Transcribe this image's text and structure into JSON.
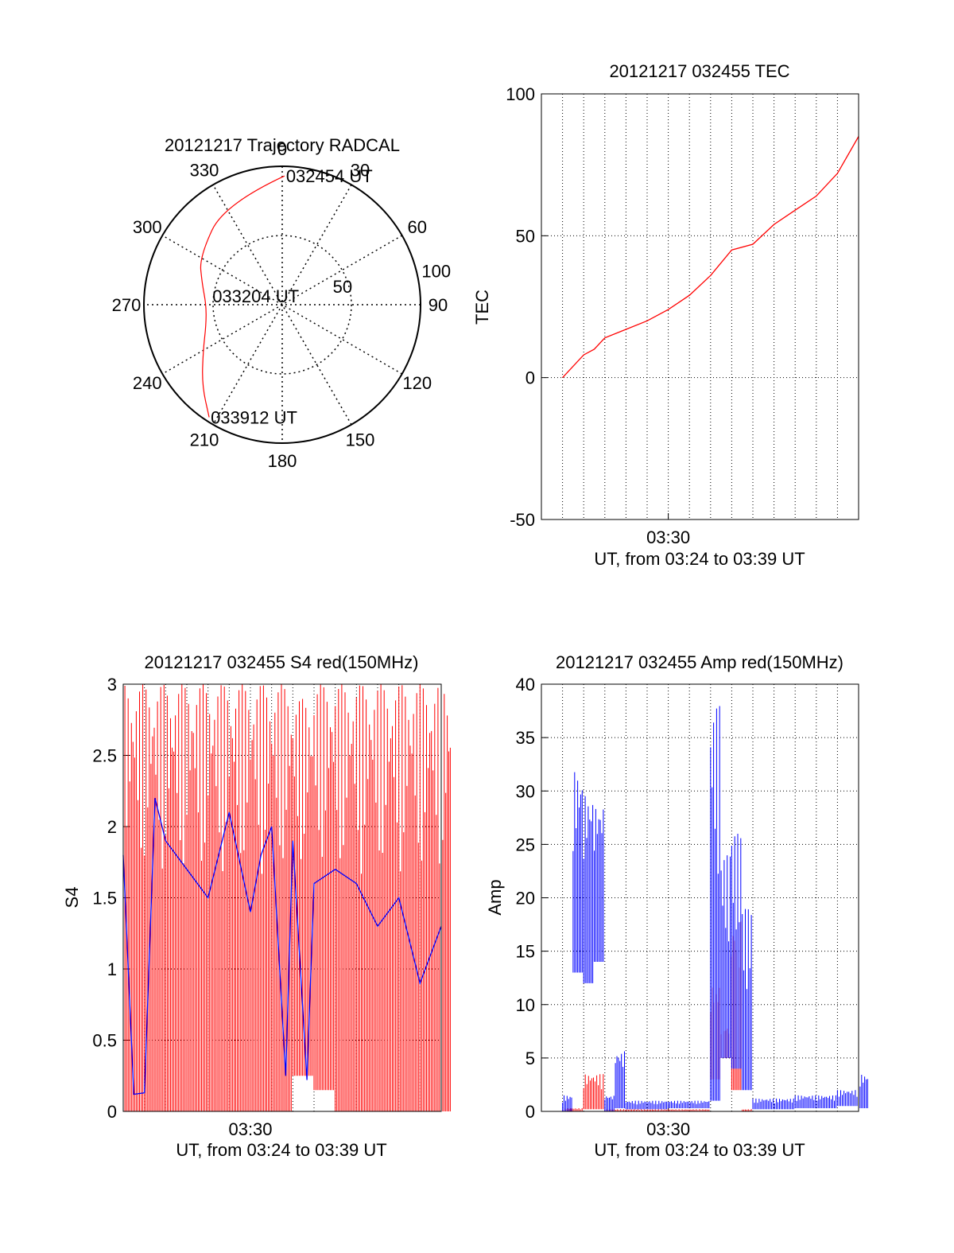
{
  "colors": {
    "red": "#ff0000",
    "blue": "#0000ff",
    "axis": "#000000",
    "grid": "#000000",
    "background": "#ffffff"
  },
  "chart_data": [
    {
      "id": "trajectory",
      "type": "polar",
      "title": "20121217 Trajectory RADCAL",
      "angle_ticks": [
        "0",
        "30",
        "60",
        "90",
        "120",
        "150",
        "180",
        "210",
        "240",
        "270",
        "300",
        "330"
      ],
      "radial_ticks": [
        "50",
        "100"
      ],
      "rlim": [
        0,
        100
      ],
      "grid": true,
      "annotations": [
        {
          "text": "032454 UT",
          "az": 1,
          "r": 93
        },
        {
          "text": "033204 UT",
          "az": 277,
          "r": 52
        },
        {
          "text": "033912 UT",
          "az": 213,
          "r": 97
        }
      ],
      "series": [
        {
          "color": "red",
          "points_az_r": [
            [
              1,
              93
            ],
            [
              330,
              84
            ],
            [
              300,
              69
            ],
            [
              285,
              60
            ],
            [
              270,
              55
            ],
            [
              255,
              57
            ],
            [
              240,
              66
            ],
            [
              225,
              82
            ],
            [
              213,
              97
            ]
          ]
        }
      ]
    },
    {
      "id": "tec",
      "type": "line",
      "title": "20121217 032455 TEC",
      "xlabel": "UT, from 03:24 to 03:39 UT",
      "ylabel": "TEC",
      "xlim": [
        "03:24",
        "03:39"
      ],
      "ylim": [
        -50,
        100
      ],
      "x_ticks": [
        "03:30"
      ],
      "y_ticks": [
        "-50",
        "0",
        "50",
        "100"
      ],
      "grid": true,
      "series": [
        {
          "color": "red",
          "x": [
            "03:25:00",
            "03:26:00",
            "03:26:30",
            "03:27:00",
            "03:28:00",
            "03:29:00",
            "03:30:00",
            "03:31:00",
            "03:32:00",
            "03:33:00",
            "03:34:00",
            "03:35:00",
            "03:36:00",
            "03:37:00",
            "03:38:00",
            "03:39:00"
          ],
          "y": [
            0,
            8,
            10,
            14,
            17,
            20,
            24,
            29,
            36,
            45,
            47,
            54,
            59,
            64,
            72,
            85
          ]
        }
      ]
    },
    {
      "id": "s4",
      "type": "line",
      "title": "20121217 032455 S4 red(150MHz)",
      "xlabel": "UT, from 03:24 to 03:39 UT",
      "ylabel": "S4",
      "xlim": [
        "03:24",
        "03:39"
      ],
      "ylim": [
        0,
        3
      ],
      "x_ticks": [
        "03:30"
      ],
      "y_ticks": [
        "0",
        "0.5",
        "1",
        "1.5",
        "2",
        "2.5",
        "3"
      ],
      "grid": true,
      "series": [
        {
          "color": "red",
          "x": [
            "03:24:00",
            "03:25:00",
            "03:26:00",
            "03:27:00",
            "03:28:00",
            "03:29:00",
            "03:30:00",
            "03:31:00",
            "03:32:00",
            "03:33:00",
            "03:34:00",
            "03:35:00",
            "03:36:00",
            "03:37:00",
            "03:38:00",
            "03:39:00"
          ],
          "y_min": [
            0,
            0,
            0,
            0,
            0,
            0,
            0,
            0,
            0.25,
            0.15,
            0,
            0,
            0,
            0,
            0,
            0
          ],
          "y_max": [
            3,
            3,
            3,
            3,
            3,
            3,
            3,
            3,
            2.9,
            3,
            3,
            3,
            3,
            3,
            3,
            3
          ]
        },
        {
          "color": "blue",
          "x": [
            "03:24:00",
            "03:24:30",
            "03:25:00",
            "03:25:30",
            "03:26:00",
            "03:27:00",
            "03:28:00",
            "03:29:00",
            "03:30:00",
            "03:30:30",
            "03:31:00",
            "03:31:40",
            "03:32:00",
            "03:32:40",
            "03:33:00",
            "03:34:00",
            "03:35:00",
            "03:36:00",
            "03:37:00",
            "03:38:00",
            "03:39:00"
          ],
          "y": [
            1.8,
            0.12,
            0.13,
            2.2,
            1.9,
            1.7,
            1.5,
            2.1,
            1.4,
            1.8,
            2.0,
            0.25,
            1.9,
            0.22,
            1.6,
            1.7,
            1.6,
            1.3,
            1.5,
            0.9,
            1.3
          ]
        }
      ]
    },
    {
      "id": "amp",
      "type": "line",
      "title": "20121217 032455 Amp red(150MHz)",
      "xlabel": "UT, from 03:24 to 03:39 UT",
      "ylabel": "Amp",
      "xlim": [
        "03:24",
        "03:39"
      ],
      "ylim": [
        0,
        40
      ],
      "x_ticks": [
        "03:30"
      ],
      "y_ticks": [
        "0",
        "5",
        "10",
        "15",
        "20",
        "25",
        "30",
        "35",
        "40"
      ],
      "grid": true,
      "series": [
        {
          "color": "red",
          "x": [
            "03:25:00",
            "03:26:00",
            "03:27:00",
            "03:32:00",
            "03:32:30",
            "03:33:00",
            "03:33:30"
          ],
          "y_min": [
            0,
            0.2,
            0,
            3,
            5,
            2,
            0
          ],
          "y_max": [
            0.3,
            3.5,
            0.2,
            12,
            8,
            18,
            0.2
          ]
        },
        {
          "color": "blue",
          "x": [
            "03:25:00",
            "03:25:30",
            "03:26:00",
            "03:26:30",
            "03:27:00",
            "03:27:30",
            "03:28:00",
            "03:30:00",
            "03:32:00",
            "03:32:30",
            "03:33:00",
            "03:33:30",
            "03:34:00",
            "03:36:00",
            "03:38:00",
            "03:39:00"
          ],
          "y_min": [
            0,
            13,
            12,
            14,
            0,
            0.3,
            0.2,
            0.3,
            1,
            5,
            4,
            2,
            0.2,
            0.3,
            0.5,
            0.3
          ],
          "y_max": [
            1.5,
            32,
            30,
            29,
            1.5,
            5.7,
            1,
            1,
            38,
            24,
            26,
            19,
            1.2,
            1.5,
            2,
            3.5
          ]
        }
      ]
    }
  ]
}
